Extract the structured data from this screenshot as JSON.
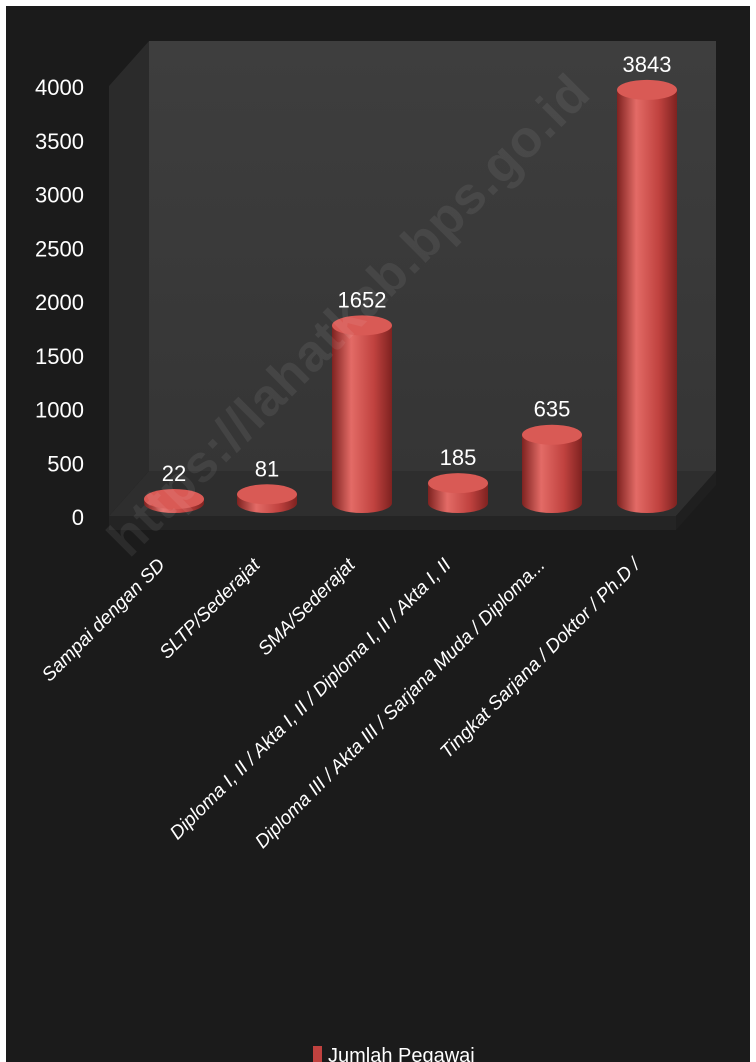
{
  "watermark": "https://lahatkab.bps.go.id",
  "colors": {
    "background": "#1b1b1b",
    "bar_main": "#c0423f",
    "bar_light": "#e36b66",
    "bar_dark": "#7e2220",
    "bar_top": "#d95a55",
    "back_wall": "#3b3b3b",
    "side_wall": "#2b2b2b",
    "floor": "#2e2e2e",
    "text": "#ffffff"
  },
  "chart_data": {
    "type": "bar",
    "style": "3d-cylinder",
    "categories": [
      "Sampai dengan SD",
      "SLTP/Sederajat",
      "SMA/Sederajat",
      "Diploma I, II / Akta I, II / Diploma I, II / Akta I, II",
      "Diploma III / Akta III / Sarjana Muda / Diploma...",
      "Tingkat Sarjana / Doktor / Ph.D /"
    ],
    "series": [
      {
        "name": "Jumlah Pegawai",
        "values": [
          22,
          81,
          1652,
          185,
          635,
          3843
        ]
      }
    ],
    "data_labels": [
      "22",
      "81",
      "1652",
      "185",
      "635",
      "3843"
    ],
    "y_ticks": [
      "0",
      "500",
      "1000",
      "1500",
      "2000",
      "2500",
      "3000",
      "3500",
      "4000"
    ],
    "ylim": [
      0,
      4000
    ],
    "grid": false,
    "legend": "bottom-center"
  }
}
